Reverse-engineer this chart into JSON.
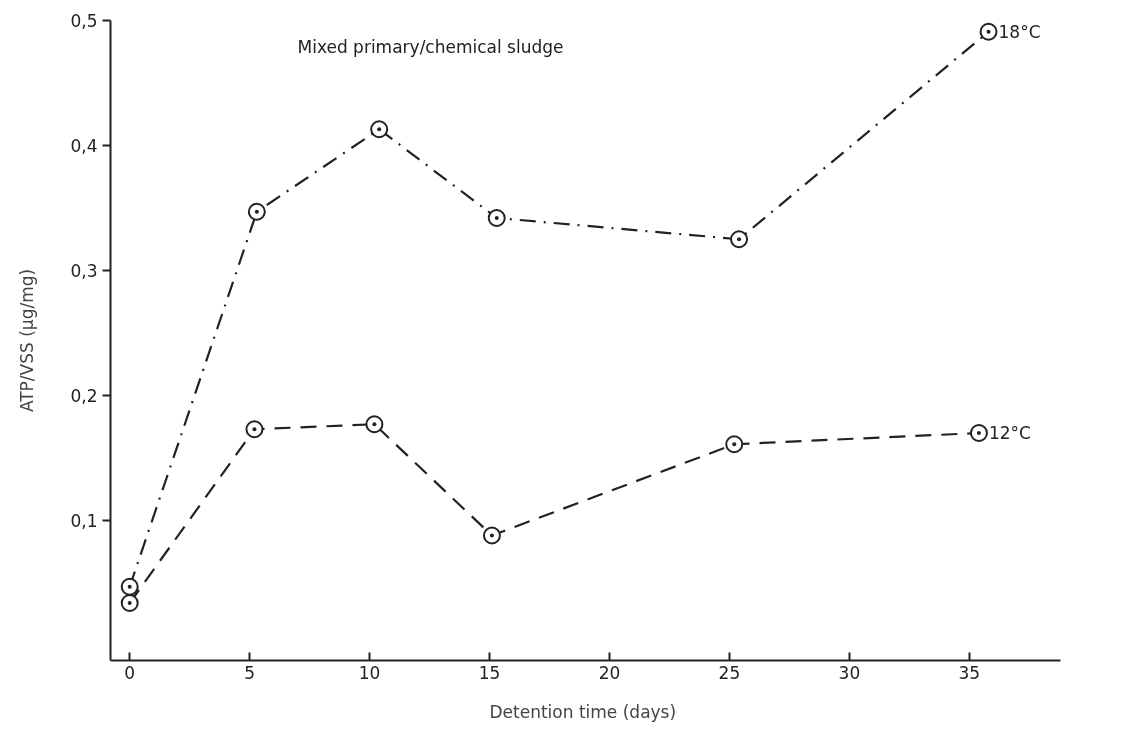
{
  "chart_data": {
    "type": "line",
    "title": "Mixed primary/chemical sludge",
    "xlabel": "Detention time  (days)",
    "ylabel": "ATP/VSS (µg/mg)",
    "xlim": [
      -0.8,
      38.8
    ],
    "ylim": [
      -0.012,
      0.5
    ],
    "xticks": [
      0,
      5,
      10,
      15,
      20,
      25,
      30,
      35
    ],
    "yticks": [
      {
        "value": 0.1,
        "label": "0,1"
      },
      {
        "value": 0.2,
        "label": "0,2"
      },
      {
        "value": 0.3,
        "label": "0,3"
      },
      {
        "value": 0.4,
        "label": "0,4"
      },
      {
        "value": 0.5,
        "label": "0,5"
      }
    ],
    "grid": false,
    "marker": "circle",
    "series": [
      {
        "name": "18°C",
        "color": "#222222",
        "line_style": "dashdot",
        "x": [
          0,
          5.3,
          10.4,
          15.3,
          25.4,
          35.8
        ],
        "values": [
          0.047,
          0.347,
          0.413,
          0.342,
          0.325,
          0.491
        ]
      },
      {
        "name": "12°C",
        "color": "#222222",
        "line_style": "dashed",
        "x": [
          0,
          5.2,
          10.2,
          15.1,
          25.2,
          35.4
        ],
        "values": [
          0.034,
          0.173,
          0.177,
          0.088,
          0.161,
          0.17
        ]
      }
    ]
  }
}
